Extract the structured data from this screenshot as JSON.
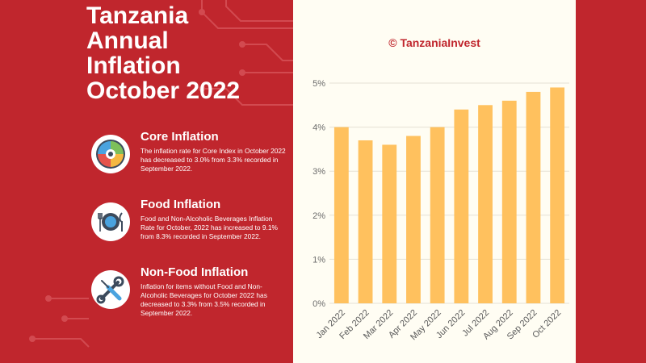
{
  "title_lines": [
    "Tanzania",
    "Annual",
    "Inflation",
    "October 2022"
  ],
  "watermark": "© TanzaniaInvest",
  "sections": [
    {
      "heading": "Core Inflation",
      "body": "The inflation rate for Core Index in October 2022 has decreased to 3.0% from 3.3% recorded in September 2022.",
      "icon": "pie-chart-icon"
    },
    {
      "heading": "Food Inflation",
      "body": "Food and Non-Alcoholic Beverages Inflation Rate for October, 2022 has increased to 9.1% from 8.3% recorded in September 2022.",
      "icon": "fork-plate-knife-icon"
    },
    {
      "heading": "Non-Food Inflation",
      "body": "Inflation for items without Food and Non-Alcoholic Beverages for October 2022 has decreased to 3.3% from 3.5% recorded in September 2022.",
      "icon": "wrench-screwdriver-icon"
    }
  ],
  "colors": {
    "background": "#c0262d",
    "panel": "#fffdf3",
    "bar": "#ffc15e",
    "text_light": "#ffffff"
  },
  "chart_data": {
    "type": "bar",
    "categories": [
      "Jan 2022",
      "Feb 2022",
      "Mar 2022",
      "Apr 2022",
      "May 2022",
      "Jun 2022",
      "Jul 2022",
      "Aug 2022",
      "Sep 2022",
      "Oct 2022"
    ],
    "values": [
      4.0,
      3.7,
      3.6,
      3.8,
      4.0,
      4.4,
      4.5,
      4.6,
      4.8,
      4.9
    ],
    "y_ticks": [
      "0%",
      "1%",
      "2%",
      "3%",
      "4%",
      "5%"
    ],
    "ylim": [
      0,
      5
    ],
    "grid": true,
    "title": "",
    "xlabel": "",
    "ylabel": ""
  }
}
